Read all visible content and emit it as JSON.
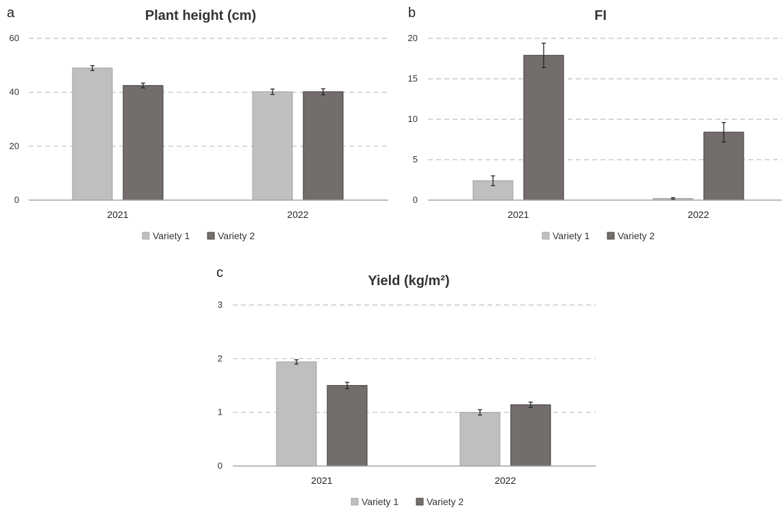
{
  "colors": {
    "variety1": "#bfbfbf",
    "variety2": "#736e6c",
    "variety1_edge": "#a8a8a8",
    "variety2_edge": "#4a4646"
  },
  "chart_data": [
    {
      "panel": "a",
      "type": "bar",
      "title": "Plant height (cm)",
      "xlabel": "",
      "ylabel": "",
      "categories": [
        "2021",
        "2022"
      ],
      "ylim": [
        0,
        60
      ],
      "yticks": [
        0,
        20,
        40,
        60
      ],
      "grid": true,
      "legend_position": "bottom",
      "series": [
        {
          "name": "Variety 1",
          "color": "#bfbfbf",
          "values": [
            49.0,
            40.2
          ],
          "errors": [
            0.9,
            1.0
          ]
        },
        {
          "name": "Variety 2",
          "color": "#736e6c",
          "values": [
            42.5,
            40.2
          ],
          "errors": [
            0.9,
            1.1
          ]
        }
      ]
    },
    {
      "panel": "b",
      "type": "bar",
      "title": "FI",
      "xlabel": "",
      "ylabel": "",
      "categories": [
        "2021",
        "2022"
      ],
      "ylim": [
        0,
        20
      ],
      "yticks": [
        0,
        5,
        10,
        15,
        20
      ],
      "grid": true,
      "legend_position": "bottom",
      "series": [
        {
          "name": "Variety 1",
          "color": "#bfbfbf",
          "values": [
            2.4,
            0.2
          ],
          "errors": [
            0.6,
            0.1
          ]
        },
        {
          "name": "Variety 2",
          "color": "#736e6c",
          "values": [
            17.9,
            8.4
          ],
          "errors": [
            1.5,
            1.2
          ]
        }
      ]
    },
    {
      "panel": "c",
      "type": "bar",
      "title": "Yield (kg/m²)",
      "xlabel": "",
      "ylabel": "",
      "categories": [
        "2021",
        "2022"
      ],
      "ylim": [
        0,
        3
      ],
      "yticks": [
        0,
        1,
        2,
        3
      ],
      "grid": true,
      "legend_position": "bottom",
      "series": [
        {
          "name": "Variety 1",
          "color": "#bfbfbf",
          "values": [
            1.94,
            1.0
          ],
          "errors": [
            0.04,
            0.05
          ]
        },
        {
          "name": "Variety 2",
          "color": "#736e6c",
          "values": [
            1.5,
            1.14
          ],
          "errors": [
            0.06,
            0.05
          ]
        }
      ]
    }
  ]
}
